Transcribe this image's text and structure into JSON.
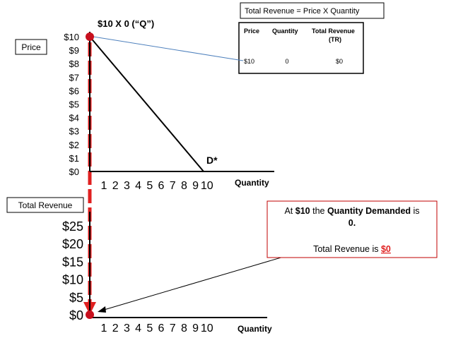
{
  "chart_data": [
    {
      "type": "line",
      "title": "$10 X 0 (“Q”)",
      "ylabel": "Price",
      "xlabel": "Quantity",
      "y_ticks": [
        "$0",
        "$1",
        "$2",
        "$3",
        "$4",
        "$5",
        "$6",
        "$7",
        "$8",
        "$9",
        "$10"
      ],
      "x_ticks": [
        "1",
        "2",
        "3",
        "4",
        "5",
        "6",
        "7",
        "8",
        "9",
        "10"
      ],
      "ylim": [
        0,
        10
      ],
      "xlim": [
        0,
        10
      ],
      "series": [
        {
          "name": "D*",
          "x": [
            0,
            10
          ],
          "y": [
            10,
            0
          ]
        }
      ],
      "highlight_point": {
        "x": 0,
        "y": 10
      }
    },
    {
      "type": "scatter",
      "ylabel": "Total Revenue",
      "xlabel": "Quantity",
      "y_ticks": [
        "$0",
        "$5",
        "$10",
        "$15",
        "$20",
        "$25"
      ],
      "x_ticks": [
        "1",
        "2",
        "3",
        "4",
        "5",
        "6",
        "7",
        "8",
        "9",
        "10"
      ],
      "ylim": [
        0,
        25
      ],
      "xlim": [
        0,
        10
      ],
      "highlight_point": {
        "x": 0,
        "y": 0
      }
    }
  ],
  "revenue_table": {
    "title": "Total Revenue = Price X Quantity",
    "headers": [
      "Price",
      "Quantity",
      "Total Revenue",
      "(TR)"
    ],
    "row": [
      "$10",
      "0",
      "$0"
    ]
  },
  "callout": {
    "line1_pre": "At ",
    "line1_price": "$10",
    "line1_mid": " the ",
    "line1_bold": "Quantity Demanded",
    "line1_post": " is",
    "line2": "0.",
    "line3_pre": "Total Revenue is ",
    "line3_value": "$0"
  },
  "colors": {
    "accent_red": "#e02020",
    "point_red": "#c8101e",
    "callout_border": "#c00000",
    "connector_blue": "#4f81bd"
  }
}
